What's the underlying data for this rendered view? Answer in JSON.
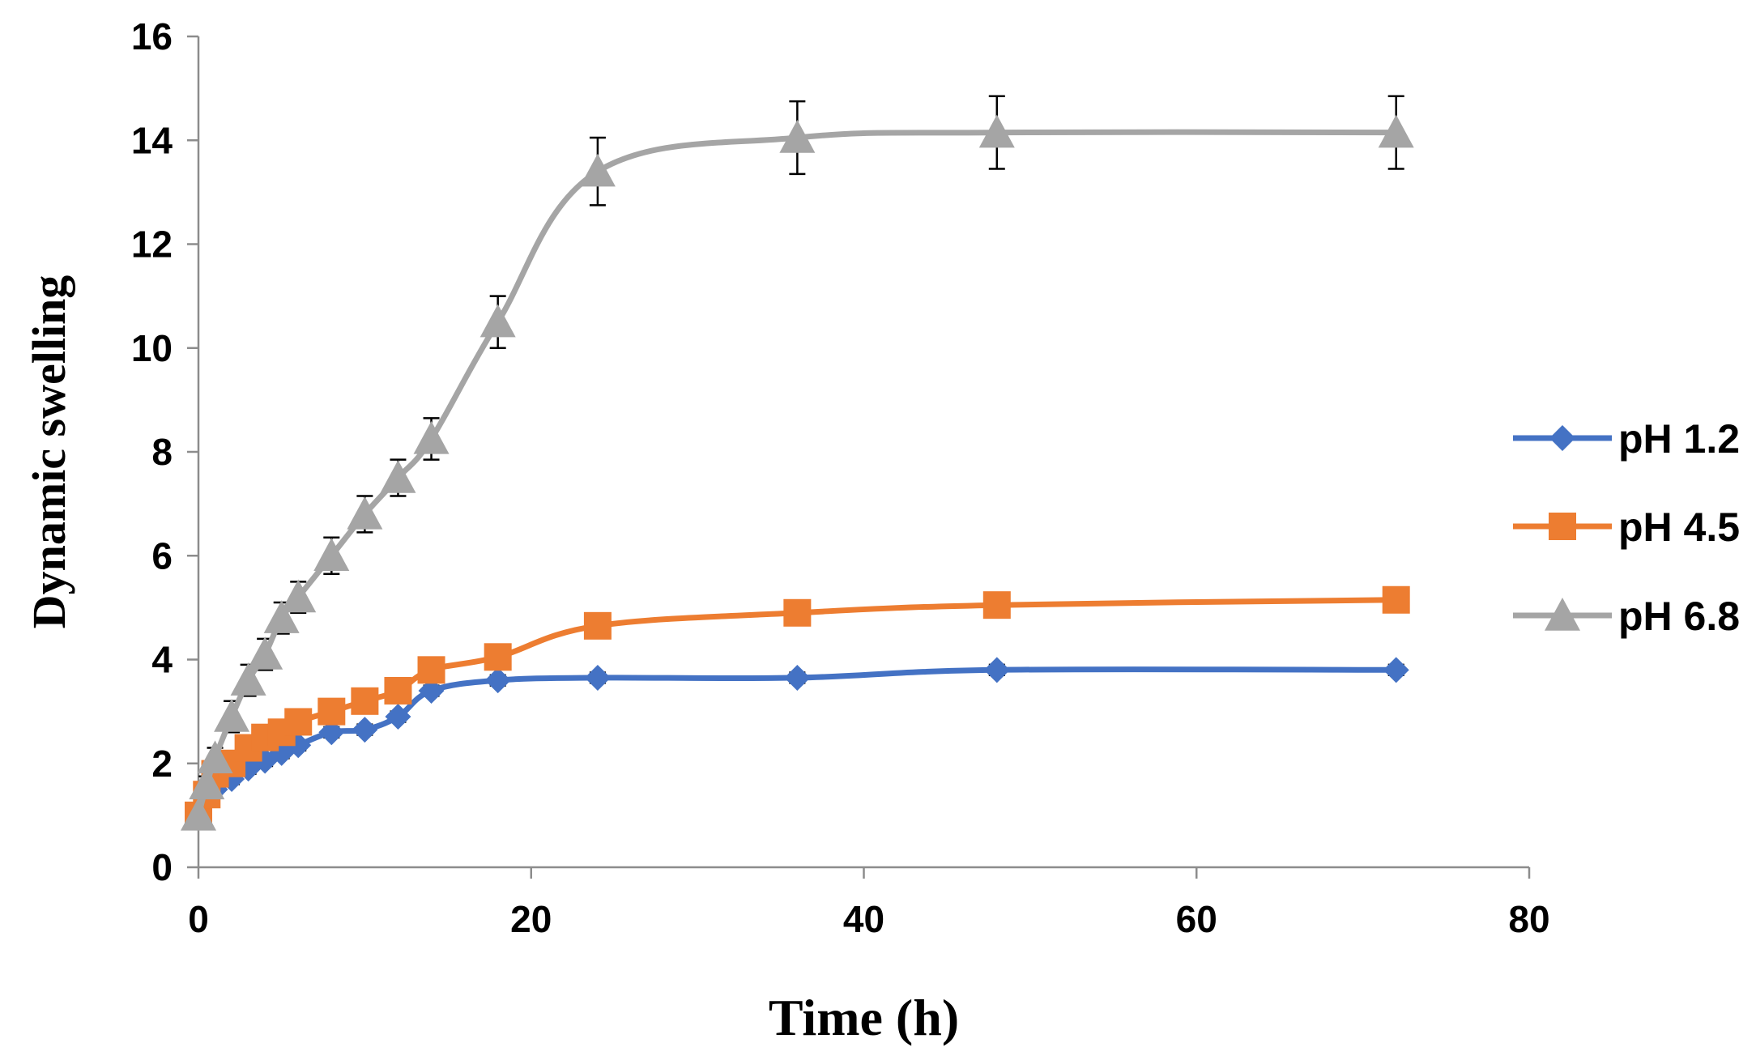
{
  "chart_data": {
    "type": "line",
    "title": "",
    "xlabel": "Time (h)",
    "ylabel": "Dynamic swelling",
    "xlim": [
      0,
      80
    ],
    "ylim": [
      0,
      16
    ],
    "x_ticks": [
      0,
      20,
      40,
      60,
      80
    ],
    "y_ticks": [
      0,
      2,
      4,
      6,
      8,
      10,
      12,
      14,
      16
    ],
    "grid": false,
    "legend_position": "right",
    "series": [
      {
        "name": "pH 1.2",
        "color": "#4472C4",
        "marker": "diamond",
        "x": [
          0,
          0.5,
          1,
          2,
          3,
          4,
          5,
          6,
          8,
          10,
          12,
          14,
          18,
          24,
          36,
          48,
          72
        ],
        "y": [
          1.0,
          1.3,
          1.5,
          1.7,
          1.9,
          2.05,
          2.2,
          2.35,
          2.6,
          2.65,
          2.9,
          3.4,
          3.6,
          3.65,
          3.65,
          3.8,
          3.8
        ],
        "err": [
          0.05,
          0.05,
          0.08,
          0.1,
          0.1,
          0.1,
          0.1,
          0.1,
          0.1,
          0.1,
          0.1,
          0.1,
          0.1,
          0.1,
          0.1,
          0.1,
          0.1
        ]
      },
      {
        "name": "pH 4.5",
        "color": "#ED7D31",
        "marker": "square",
        "x": [
          0,
          0.5,
          1,
          2,
          3,
          4,
          5,
          6,
          8,
          10,
          12,
          14,
          18,
          24,
          36,
          48,
          72
        ],
        "y": [
          1.0,
          1.4,
          1.8,
          2.0,
          2.3,
          2.5,
          2.6,
          2.8,
          3.0,
          3.2,
          3.4,
          3.8,
          4.05,
          4.65,
          4.9,
          5.05,
          5.15
        ],
        "err": [
          0.05,
          0.05,
          0.08,
          0.1,
          0.1,
          0.1,
          0.1,
          0.1,
          0.1,
          0.1,
          0.1,
          0.1,
          0.1,
          0.1,
          0.1,
          0.1,
          0.1
        ]
      },
      {
        "name": "pH 6.8",
        "color": "#A5A5A5",
        "marker": "triangle",
        "x": [
          0,
          0.5,
          1,
          2,
          3,
          4,
          5,
          6,
          8,
          10,
          12,
          14,
          18,
          24,
          36,
          48,
          72
        ],
        "y": [
          1.0,
          1.6,
          2.1,
          2.9,
          3.6,
          4.1,
          4.8,
          5.2,
          6.0,
          6.8,
          7.5,
          8.25,
          10.5,
          13.4,
          14.05,
          14.15,
          14.15
        ],
        "err": [
          0.05,
          0.15,
          0.2,
          0.3,
          0.3,
          0.3,
          0.3,
          0.3,
          0.35,
          0.35,
          0.35,
          0.4,
          0.5,
          0.65,
          0.7,
          0.7,
          0.7
        ]
      }
    ]
  }
}
